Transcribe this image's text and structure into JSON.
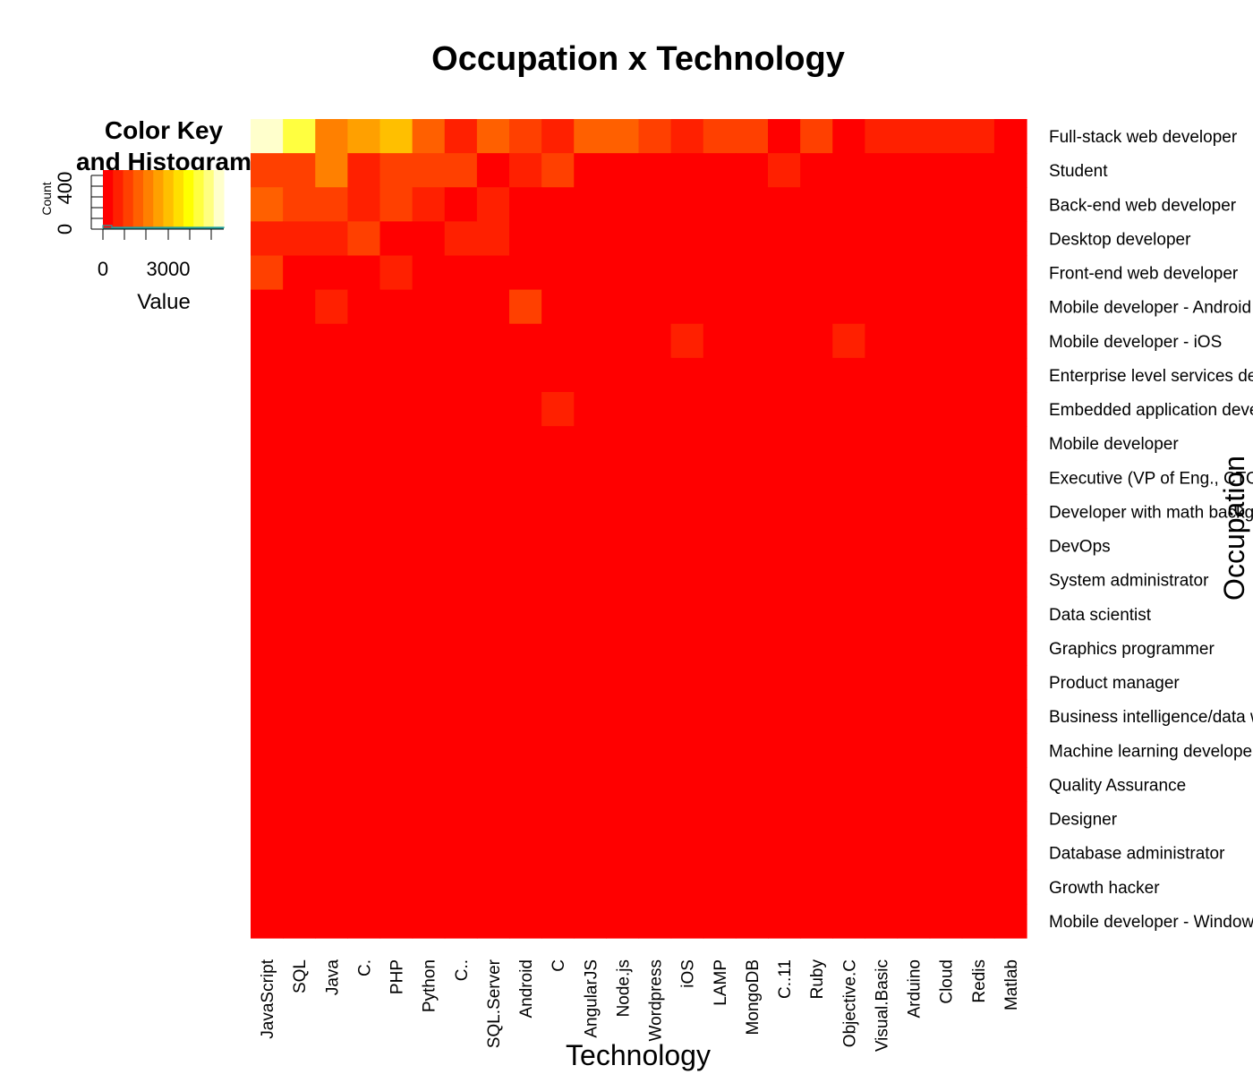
{
  "chart_data": {
    "type": "heatmap",
    "title": "Occupation x Technology",
    "xlabel": "Technology",
    "ylabel": "Occupation",
    "columns": [
      "JavaScript",
      "SQL",
      "Java",
      "C.",
      "PHP",
      "Python",
      "C..",
      "SQL.Server",
      "Android",
      "C",
      "AngularJS",
      "Node.js",
      "Wordpress",
      "iOS",
      "LAMP",
      "MongoDB",
      "C..11",
      "Ruby",
      "Objective.C",
      "Visual.Basic",
      "Arduino",
      "Cloud",
      "Redis",
      "Matlab"
    ],
    "rows": [
      "Full-stack web developer",
      "Student",
      "Back-end web developer",
      "Desktop developer",
      "Front-end web developer",
      "Mobile developer - Android",
      "Mobile developer - iOS",
      "Enterprise level services developer",
      "Embedded application developer",
      "Mobile developer",
      "Executive (VP of Eng., CTO, CIO, etc.)",
      "Developer with math background",
      "DevOps",
      "System administrator",
      "Data scientist",
      "Graphics programmer",
      "Product manager",
      "Business intelligence/data warehousing expert",
      "Machine learning developer",
      "Quality Assurance",
      "Designer",
      "Database administrator",
      "Growth hacker",
      "Mobile developer - Windows Phone"
    ],
    "values": [
      [
        5800,
        4800,
        2400,
        2900,
        3200,
        1600,
        800,
        1900,
        1000,
        700,
        1800,
        1500,
        1200,
        900,
        1100,
        1100,
        400,
        1200,
        250,
        850,
        850,
        850,
        850,
        250
      ],
      [
        1000,
        1000,
        2000,
        600,
        1300,
        1300,
        1300,
        150,
        700,
        1100,
        100,
        100,
        100,
        100,
        100,
        100,
        600,
        100,
        100,
        100,
        100,
        100,
        100,
        100
      ],
      [
        1600,
        1300,
        1300,
        650,
        1300,
        850,
        300,
        950,
        100,
        100,
        100,
        100,
        100,
        100,
        100,
        100,
        100,
        100,
        100,
        100,
        100,
        100,
        100,
        100
      ],
      [
        650,
        650,
        650,
        1250,
        100,
        100,
        800,
        800,
        50,
        50,
        50,
        50,
        50,
        50,
        50,
        50,
        50,
        50,
        50,
        50,
        50,
        50,
        50,
        50
      ],
      [
        1100,
        80,
        80,
        80,
        750,
        80,
        80,
        80,
        80,
        80,
        80,
        80,
        80,
        80,
        80,
        80,
        80,
        80,
        80,
        80,
        80,
        80,
        80,
        80
      ],
      [
        60,
        60,
        650,
        60,
        60,
        60,
        60,
        60,
        1200,
        60,
        60,
        60,
        60,
        60,
        60,
        60,
        60,
        60,
        60,
        60,
        60,
        60,
        60,
        60
      ],
      [
        50,
        50,
        50,
        50,
        50,
        50,
        50,
        50,
        50,
        50,
        50,
        50,
        50,
        650,
        50,
        50,
        50,
        50,
        650,
        50,
        50,
        50,
        50,
        50
      ],
      [
        40,
        40,
        40,
        40,
        40,
        40,
        40,
        40,
        40,
        40,
        40,
        40,
        40,
        40,
        40,
        40,
        40,
        40,
        40,
        40,
        40,
        40,
        40,
        40
      ],
      [
        30,
        30,
        30,
        30,
        30,
        30,
        30,
        30,
        30,
        500,
        30,
        30,
        30,
        30,
        30,
        30,
        30,
        30,
        30,
        30,
        30,
        30,
        30,
        30
      ],
      [
        30,
        30,
        30,
        30,
        30,
        30,
        30,
        30,
        30,
        30,
        30,
        30,
        30,
        30,
        30,
        30,
        30,
        30,
        30,
        30,
        30,
        30,
        30,
        30
      ],
      [
        20,
        20,
        20,
        20,
        20,
        20,
        20,
        20,
        20,
        20,
        20,
        20,
        20,
        20,
        20,
        20,
        20,
        20,
        20,
        20,
        20,
        20,
        20,
        20
      ],
      [
        20,
        20,
        20,
        20,
        20,
        20,
        20,
        20,
        20,
        20,
        20,
        20,
        20,
        20,
        20,
        20,
        20,
        20,
        20,
        20,
        20,
        20,
        20,
        20
      ],
      [
        20,
        20,
        20,
        20,
        20,
        20,
        20,
        20,
        20,
        20,
        20,
        20,
        20,
        20,
        20,
        20,
        20,
        20,
        20,
        20,
        20,
        20,
        20,
        20
      ],
      [
        20,
        20,
        20,
        20,
        20,
        20,
        20,
        20,
        20,
        20,
        20,
        20,
        20,
        20,
        20,
        20,
        20,
        20,
        20,
        20,
        20,
        20,
        20,
        20
      ],
      [
        15,
        15,
        15,
        15,
        15,
        15,
        15,
        15,
        15,
        15,
        15,
        15,
        15,
        15,
        15,
        15,
        15,
        15,
        15,
        15,
        15,
        15,
        15,
        15
      ],
      [
        15,
        15,
        15,
        15,
        15,
        15,
        15,
        15,
        15,
        15,
        15,
        15,
        15,
        15,
        15,
        15,
        15,
        15,
        15,
        15,
        15,
        15,
        15,
        15
      ],
      [
        10,
        10,
        10,
        10,
        10,
        10,
        10,
        10,
        10,
        10,
        10,
        10,
        10,
        10,
        10,
        10,
        10,
        10,
        10,
        10,
        10,
        10,
        10,
        10
      ],
      [
        10,
        10,
        10,
        10,
        10,
        10,
        10,
        10,
        10,
        10,
        10,
        10,
        10,
        10,
        10,
        10,
        10,
        10,
        10,
        10,
        10,
        10,
        10,
        10
      ],
      [
        10,
        10,
        10,
        10,
        10,
        10,
        10,
        10,
        10,
        10,
        10,
        10,
        10,
        10,
        10,
        10,
        10,
        10,
        10,
        10,
        10,
        10,
        10,
        10
      ],
      [
        10,
        10,
        10,
        10,
        10,
        10,
        10,
        10,
        10,
        10,
        10,
        10,
        10,
        10,
        10,
        10,
        10,
        10,
        10,
        10,
        10,
        10,
        10,
        10
      ],
      [
        5,
        5,
        5,
        5,
        5,
        5,
        5,
        5,
        5,
        5,
        5,
        5,
        5,
        5,
        5,
        5,
        5,
        5,
        5,
        5,
        5,
        5,
        5,
        5
      ],
      [
        5,
        5,
        5,
        5,
        5,
        5,
        5,
        5,
        5,
        5,
        5,
        5,
        5,
        5,
        5,
        5,
        5,
        5,
        5,
        5,
        5,
        5,
        5,
        5
      ],
      [
        5,
        5,
        5,
        5,
        5,
        5,
        5,
        5,
        5,
        5,
        5,
        5,
        5,
        5,
        5,
        5,
        5,
        5,
        5,
        5,
        5,
        5,
        5,
        5
      ],
      [
        5,
        5,
        5,
        5,
        5,
        5,
        5,
        5,
        5,
        5,
        5,
        5,
        5,
        5,
        5,
        5,
        5,
        5,
        5,
        5,
        5,
        5,
        5,
        5
      ]
    ],
    "value_range": [
      0,
      6000
    ],
    "color_scale": [
      "#FF0000",
      "#FF2000",
      "#FF4000",
      "#FF6000",
      "#FF8000",
      "#FFA000",
      "#FFBF00",
      "#FFDF00",
      "#FFFF00",
      "#FFFF40",
      "#FFFF80",
      "#FFFFCC"
    ],
    "color_key": {
      "title_line1": "Color Key",
      "title_line2": "and Histogram",
      "xlabel": "Value",
      "ylabel": "Count",
      "x_ticks": [
        "0",
        "3000"
      ],
      "y_ticks": [
        "0",
        "400"
      ]
    }
  }
}
